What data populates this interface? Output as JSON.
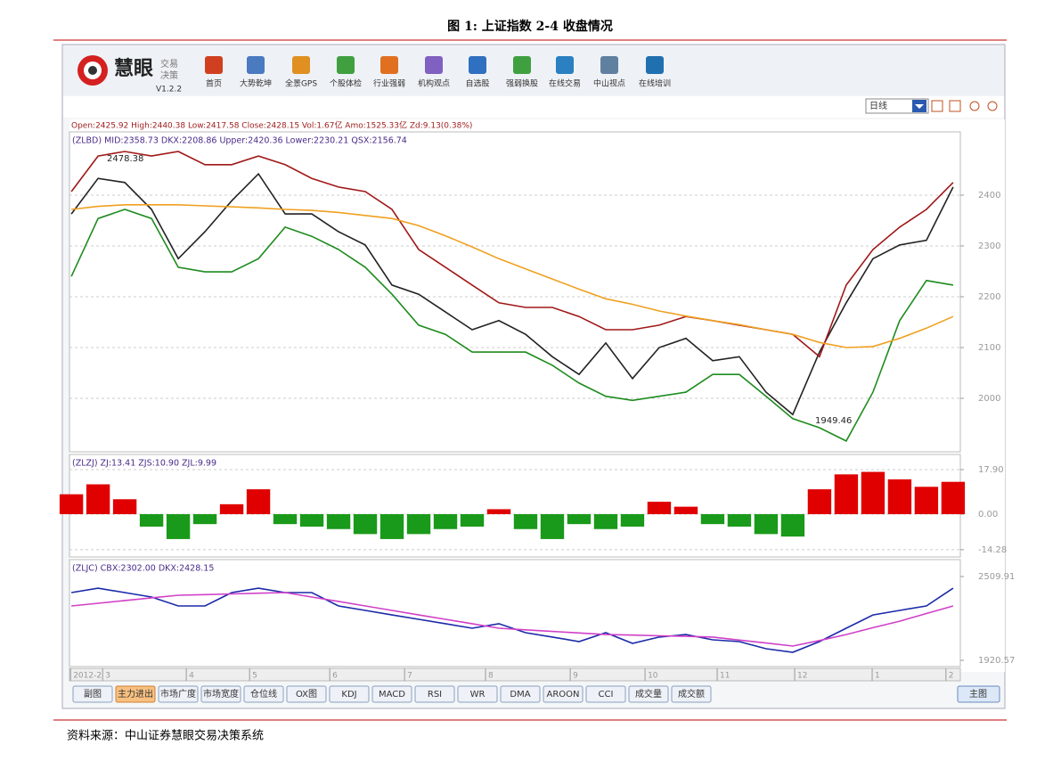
{
  "title": "图 1: 上证指数 2-4 收盘情况",
  "toolbar": {
    "logo": "慧眼",
    "logo_sub": [
      "交易",
      "决策"
    ],
    "version": "V1.2.2",
    "buttons": [
      "首页",
      "大势乾坤",
      "全景GPS",
      "个股体检",
      "行业强弱",
      "机构观点",
      "自选股",
      "强弱换股",
      "在线交易",
      "中山视点",
      "在线培训"
    ]
  },
  "period": "日线",
  "quote_line": "Open:2425.92 High:2440.38 Low:2417.58 Close:2428.15 Vol:1.67亿 Amo:1525.33亿 Zd:9.13(0.38%)",
  "chart_data": [
    {
      "type": "line",
      "legend": "(ZLBD) MID:2358.73 DKX:2208.86 Upper:2420.36 Lower:2230.21 QSX:2156.74",
      "annotations": [
        "2478.38",
        "1949.46"
      ],
      "x": [
        0,
        1,
        2,
        3,
        4,
        5,
        6,
        7,
        8,
        9,
        10,
        11,
        12,
        13,
        14,
        15,
        16,
        17,
        18,
        19,
        20,
        21,
        22,
        23,
        24,
        25,
        26,
        27,
        28,
        29,
        30,
        31,
        32,
        33
      ],
      "xlim": [
        -0.07,
        33.27
      ],
      "ylim": [
        1894.7,
        2524.6
      ],
      "yticks": [
        2000,
        2100,
        2200,
        2300,
        2400
      ],
      "grid": true,
      "series": [
        {
          "color": "#222222",
          "values": [
            2363,
            2433,
            2425,
            2372,
            2275,
            2328,
            2389,
            2442,
            2363,
            2363,
            2328,
            2302,
            2223,
            2205,
            2170,
            2135,
            2153,
            2126,
            2082,
            2047,
            2109,
            2039,
            2100,
            2118,
            2074,
            2082,
            2012,
            1968,
            2091,
            2188,
            2275,
            2302,
            2311,
            2416
          ]
        },
        {
          "color": "#a01818",
          "values": [
            2407,
            2477,
            2486,
            2477,
            2486,
            2460,
            2460,
            2477,
            2460,
            2433,
            2416,
            2407,
            2372,
            2293,
            2258,
            2223,
            2188,
            2179,
            2179,
            2161,
            2135,
            2135,
            2144,
            2161,
            2153,
            2144,
            2135,
            2126,
            2082,
            2223,
            2293,
            2337,
            2372,
            2425
          ]
        },
        {
          "color": "#1e8c1e",
          "values": [
            2240,
            2354,
            2372,
            2354,
            2258,
            2249,
            2249,
            2275,
            2337,
            2319,
            2293,
            2258,
            2205,
            2144,
            2126,
            2091,
            2091,
            2091,
            2065,
            2030,
            2004,
            1996,
            2004,
            2012,
            2047,
            2047,
            2004,
            1960,
            1942,
            1916,
            2012,
            2153,
            2232,
            2223
          ]
        },
        {
          "color": "#f0a020",
          "values": [
            2372,
            2378,
            2381,
            2381,
            2381,
            2379,
            2377,
            2375,
            2372,
            2370,
            2366,
            2360,
            2354,
            2340,
            2320,
            2298,
            2275,
            2255,
            2235,
            2215,
            2196,
            2185,
            2172,
            2162,
            2153,
            2145,
            2135,
            2126,
            2110,
            2100,
            2102,
            2118,
            2138,
            2161
          ]
        }
      ]
    },
    {
      "type": "bar",
      "legend": "(ZLZJ) ZJ:13.41 ZJS:10.90 ZJL:9.99",
      "x": [
        0,
        1,
        2,
        3,
        4,
        5,
        6,
        7,
        8,
        9,
        10,
        11,
        12,
        13,
        14,
        15,
        16,
        17,
        18,
        19,
        20,
        21,
        22,
        23,
        24,
        25,
        26,
        27,
        28,
        29,
        30,
        31,
        32,
        33
      ],
      "xlim": [
        -0.07,
        33.27
      ],
      "ylim": [
        -17.19,
        24.0
      ],
      "yticks": [
        {
          "value": 17.9,
          "label": "17.90"
        },
        {
          "value": 0,
          "label": "0.00"
        },
        -14.28
      ],
      "grid": true,
      "positive_color": "#e00000",
      "negative_color": "#1a9a1a",
      "values": [
        8,
        12,
        6,
        -5,
        -10,
        -4,
        4,
        10,
        -4,
        -5,
        -6,
        -8,
        -10,
        -8,
        -6,
        -5,
        2,
        -6,
        -10,
        -4,
        -6,
        -5,
        5,
        3,
        -4,
        -5,
        -8,
        -9,
        10,
        16,
        17,
        14,
        11,
        13
      ]
    },
    {
      "type": "line",
      "legend": "(ZLJC) CBX:2302.00 DKX:2428.15",
      "x": [
        0,
        1,
        2,
        3,
        4,
        5,
        6,
        7,
        8,
        9,
        10,
        11,
        12,
        13,
        14,
        15,
        16,
        17,
        18,
        19,
        20,
        21,
        22,
        23,
        24,
        25,
        26,
        27,
        28,
        29,
        30,
        31,
        32,
        33
      ],
      "xlim": [
        -0.07,
        33.27
      ],
      "ylim": [
        1876.7,
        2629.1
      ],
      "yticks": [
        {
          "value": 2509.91,
          "label": "2509.91"
        },
        {
          "value": 1920.57,
          "label": "1920.57"
        }
      ],
      "grid": false,
      "xticks": [
        {
          "value": -0.03,
          "label": "2012-2"
        },
        {
          "value": 1.17,
          "label": "3"
        },
        {
          "value": 4.3,
          "label": "4"
        },
        {
          "value": 6.67,
          "label": "5"
        },
        {
          "value": 9.67,
          "label": "6"
        },
        {
          "value": 12.47,
          "label": "7"
        },
        {
          "value": 15.5,
          "label": "8"
        },
        {
          "value": 18.67,
          "label": "9"
        },
        {
          "value": 21.47,
          "label": "10"
        },
        {
          "value": 24.17,
          "label": "11"
        },
        {
          "value": 27.07,
          "label": "12"
        },
        {
          "value": 29.97,
          "label": "1"
        },
        {
          "value": 32.73,
          "label": "2"
        }
      ],
      "series": [
        {
          "color": "#1a2aa8",
          "values": [
            2397,
            2428,
            2397,
            2366,
            2303,
            2303,
            2397,
            2428,
            2397,
            2397,
            2303,
            2272,
            2240,
            2209,
            2178,
            2146,
            2178,
            2115,
            2084,
            2052,
            2115,
            2040,
            2084,
            2102,
            2065,
            2052,
            2002,
            1977,
            2052,
            2146,
            2240,
            2272,
            2303,
            2428
          ]
        },
        {
          "color": "#d040c8",
          "values": [
            2303,
            2322,
            2341,
            2360,
            2378,
            2383,
            2388,
            2393,
            2397,
            2366,
            2335,
            2303,
            2272,
            2240,
            2209,
            2178,
            2146,
            2135,
            2124,
            2113,
            2102,
            2098,
            2093,
            2089,
            2084,
            2063,
            2042,
            2021,
            2060,
            2102,
            2150,
            2196,
            2250,
            2303
          ]
        }
      ]
    }
  ],
  "tabs": [
    {
      "label": "副图",
      "active": false
    },
    {
      "label": "主力进出",
      "active": true
    },
    {
      "label": "市场广度",
      "active": false
    },
    {
      "label": "市场宽度",
      "active": false
    },
    {
      "label": "仓位线",
      "active": false
    },
    {
      "label": "OX图",
      "active": false
    },
    {
      "label": "KDJ",
      "active": false
    },
    {
      "label": "MACD",
      "active": false
    },
    {
      "label": "RSI",
      "active": false
    },
    {
      "label": "WR",
      "active": false
    },
    {
      "label": "DMA",
      "active": false
    },
    {
      "label": "AROON",
      "active": false
    },
    {
      "label": "CCI",
      "active": false
    },
    {
      "label": "成交量",
      "active": false
    },
    {
      "label": "成交额",
      "active": false
    }
  ],
  "main_tab": "主图",
  "source": "资料来源：中山证券慧眼交易决策系统"
}
